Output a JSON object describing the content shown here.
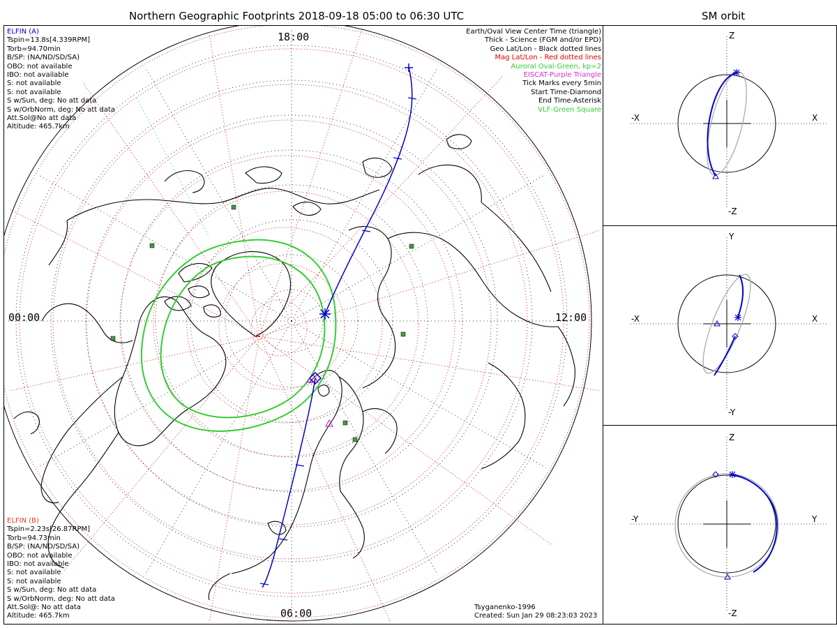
{
  "main_title": "Northern Geographic Footprints 2018-09-18 05:00 to 06:30 UTC",
  "side_title": "SM orbit",
  "hour_labels": {
    "top": "18:00",
    "left": "00:00",
    "right": "12:00",
    "bottom": "06:00"
  },
  "elfin_a": {
    "name": "ELFIN (A)",
    "lines": [
      "Tspin=13.8s[4.339RPM]",
      "Torb=94.70min",
      "B/SP: (NA/ND/SD/SA)",
      "OBO: not available",
      "IBO: not available",
      "S: not available",
      "S: not available",
      "S w/Sun, deg: No att data",
      "S w/OrbNorm, deg: No att data",
      "Att.Sol@No att data",
      "Altitude: 465.7km"
    ]
  },
  "elfin_b": {
    "name": "ELFIN (B)",
    "lines": [
      "Tspin=2.23s[26.87RPM]",
      "Torb=94.73min",
      "B/SP: (NA/ND/SD/SA)",
      "OBO: not available",
      "IBO: not available",
      "S: not available",
      "S: not available",
      "S w/Sun, deg: No att data",
      "S w/OrbNorm, deg: No att data",
      "Att.Sol@: No att data",
      "Altitude: 465.7km"
    ]
  },
  "legend": [
    {
      "text": "Earth/Oval View Center Time (triangle)",
      "color": "#000000"
    },
    {
      "text": "Thick - Science (FGM and/or EPD)",
      "color": "#000000"
    },
    {
      "text": "Geo Lat/Lon - Black dotted lines",
      "color": "#000000"
    },
    {
      "text": "Mag Lat/Lon - Red dotted lines",
      "color": "#e00000"
    },
    {
      "text": "Auroral Oval-Green, kp=2",
      "color": "#33cc33"
    },
    {
      "text": "EISCAT-Purple Triangle",
      "color": "#cc33cc"
    },
    {
      "text": "Tick Marks every 5min",
      "color": "#000000"
    },
    {
      "text": "Start Time-Diamond",
      "color": "#000000"
    },
    {
      "text": "End Time-Asterisk",
      "color": "#000000"
    },
    {
      "text": "VLF-Green Square",
      "color": "#33cc33"
    }
  ],
  "credit": "Tsyganenko-1996",
  "created": "Created: Sun Jan 29 08:23:03 2023",
  "panels": [
    {
      "top": "Z",
      "bottom": "-Z",
      "left": "-X",
      "right": "X"
    },
    {
      "top": "Y",
      "bottom": "-Y",
      "left": "-X",
      "right": "X"
    },
    {
      "top": "Z",
      "bottom": "-Z",
      "left": "-Y",
      "right": "Y"
    }
  ],
  "colors": {
    "orbit": "#0000cc",
    "oval": "#33cc33",
    "mag_grid": "#e00000",
    "geo_grid": "#000000",
    "elfin_a": "#0000cc",
    "elfin_b": "#e04020"
  }
}
